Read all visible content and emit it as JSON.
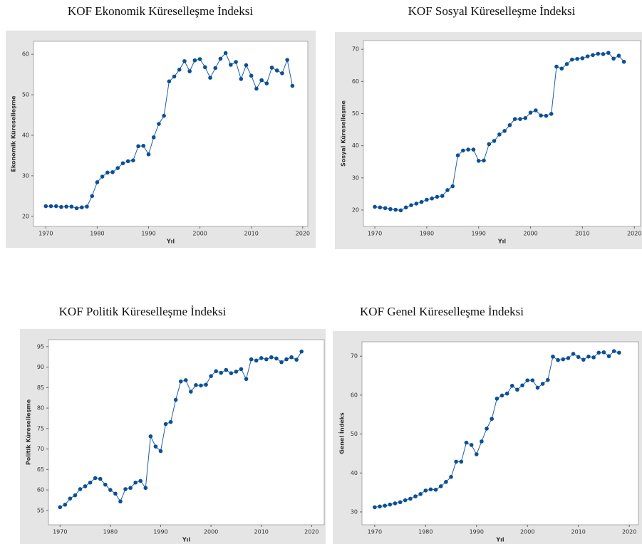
{
  "chart_data": [
    {
      "type": "line",
      "title": "KOF Ekonomik Küreselleşme İndeksi",
      "x_label": "Yıl",
      "y_label": "Ekonomik Küreselleşme",
      "color": "#1f5fa6",
      "x": [
        1970,
        1971,
        1972,
        1973,
        1974,
        1975,
        1976,
        1977,
        1978,
        1979,
        1980,
        1981,
        1982,
        1983,
        1984,
        1985,
        1986,
        1987,
        1988,
        1989,
        1990,
        1991,
        1992,
        1993,
        1994,
        1995,
        1996,
        1997,
        1998,
        1999,
        2000,
        2001,
        2002,
        2003,
        2004,
        2005,
        2006,
        2007,
        2008,
        2009,
        2010,
        2011,
        2012,
        2013,
        2014,
        2015,
        2016,
        2017,
        2018
      ],
      "values": [
        22.5,
        22.5,
        22.5,
        22.3,
        22.4,
        22.4,
        22.0,
        22.2,
        22.4,
        25.0,
        28.4,
        29.8,
        30.8,
        30.9,
        31.9,
        33.1,
        33.6,
        33.8,
        37.3,
        37.4,
        35.3,
        39.5,
        42.8,
        44.8,
        53.3,
        54.5,
        56.2,
        58.3,
        55.8,
        58.5,
        58.8,
        56.8,
        54.2,
        56.6,
        58.9,
        60.3,
        57.4,
        58.1,
        53.9,
        57.3,
        54.7,
        51.5,
        53.6,
        52.8,
        56.7,
        56.0,
        55.3,
        58.6,
        52.2
      ],
      "xlim": [
        1967.6,
        2021
      ],
      "xticks": [
        1970,
        1980,
        1990,
        2000,
        2010,
        2020
      ],
      "ylim": [
        17.5,
        63.2
      ],
      "yticks": [
        20,
        30,
        40,
        50,
        60
      ]
    },
    {
      "type": "line",
      "title": "KOF Sosyal Küreselleşme İndeksi",
      "x_label": "Yıl",
      "y_label": "Sosyal Küreselleşme",
      "color": "#1f5fa6",
      "x": [
        1970,
        1971,
        1972,
        1973,
        1974,
        1975,
        1976,
        1977,
        1978,
        1979,
        1980,
        1981,
        1982,
        1983,
        1984,
        1985,
        1986,
        1987,
        1988,
        1989,
        1990,
        1991,
        1992,
        1993,
        1994,
        1995,
        1996,
        1997,
        1998,
        1999,
        2000,
        2001,
        2002,
        2003,
        2004,
        2005,
        2006,
        2007,
        2008,
        2009,
        2010,
        2011,
        2012,
        2013,
        2014,
        2015,
        2016,
        2017,
        2018
      ],
      "values": [
        21.0,
        20.8,
        20.6,
        20.3,
        20.1,
        19.9,
        20.8,
        21.5,
        22.0,
        22.5,
        23.2,
        23.6,
        24.1,
        24.4,
        26.2,
        27.4,
        37.0,
        38.5,
        38.8,
        38.8,
        35.3,
        35.4,
        40.5,
        41.5,
        43.5,
        44.6,
        46.4,
        48.3,
        48.3,
        48.6,
        50.3,
        51.0,
        49.4,
        49.3,
        49.9,
        64.6,
        64.0,
        65.4,
        66.8,
        67.0,
        67.2,
        67.8,
        68.2,
        68.6,
        68.5,
        68.9,
        67.1,
        68.0,
        66.1
      ],
      "xlim": [
        1967.8,
        2021.2
      ],
      "xticks": [
        1970,
        1980,
        1990,
        2000,
        2010,
        2020
      ],
      "ylim": [
        14.9,
        72.7
      ],
      "yticks": [
        20,
        30,
        40,
        50,
        60,
        70
      ]
    },
    {
      "type": "line",
      "title": "KOF Politik Küreselleşme İndeksi",
      "x_label": "Yıl",
      "y_label": "Politik Küreselleşme",
      "color": "#1f5fa6",
      "x": [
        1970,
        1971,
        1972,
        1973,
        1974,
        1975,
        1976,
        1977,
        1978,
        1979,
        1980,
        1981,
        1982,
        1983,
        1984,
        1985,
        1986,
        1987,
        1988,
        1989,
        1990,
        1991,
        1992,
        1993,
        1994,
        1995,
        1996,
        1997,
        1998,
        1999,
        2000,
        2001,
        2002,
        2003,
        2004,
        2005,
        2006,
        2007,
        2008,
        2009,
        2010,
        2011,
        2012,
        2013,
        2014,
        2015,
        2016,
        2017,
        2018
      ],
      "values": [
        55.8,
        56.4,
        57.9,
        58.7,
        60.2,
        60.9,
        61.8,
        62.9,
        62.7,
        61.3,
        60.0,
        59.1,
        57.2,
        60.2,
        60.5,
        61.8,
        62.2,
        60.5,
        73.1,
        70.6,
        69.5,
        76.1,
        76.6,
        82.0,
        86.5,
        86.8,
        84.0,
        85.6,
        85.5,
        85.7,
        87.8,
        89.0,
        88.6,
        89.3,
        88.5,
        88.9,
        89.5,
        87.1,
        91.9,
        91.6,
        92.2,
        91.9,
        92.4,
        92.1,
        91.2,
        91.9,
        92.4,
        91.8,
        93.8
      ],
      "xlim": [
        1967.7,
        2022.5
      ],
      "xticks": [
        1970,
        1980,
        1990,
        2000,
        2010,
        2020
      ],
      "ylim": [
        51.5,
        96.7
      ],
      "yticks": [
        55,
        60,
        65,
        70,
        75,
        80,
        85,
        90,
        95
      ]
    },
    {
      "type": "line",
      "title": "KOF Genel Küreselleşme İndeksi",
      "x_label": "Yıl",
      "y_label": "Genel İndeks",
      "color": "#1f5fa6",
      "x": [
        1970,
        1971,
        1972,
        1973,
        1974,
        1975,
        1976,
        1977,
        1978,
        1979,
        1980,
        1981,
        1982,
        1983,
        1984,
        1985,
        1986,
        1987,
        1988,
        1989,
        1990,
        1991,
        1992,
        1993,
        1994,
        1995,
        1996,
        1997,
        1998,
        1999,
        2000,
        2001,
        2002,
        2003,
        2004,
        2005,
        2006,
        2007,
        2008,
        2009,
        2010,
        2011,
        2012,
        2013,
        2014,
        2015,
        2016,
        2017,
        2018
      ],
      "values": [
        31.2,
        31.4,
        31.6,
        31.9,
        32.2,
        32.5,
        33.0,
        33.4,
        34.0,
        34.6,
        35.5,
        35.8,
        35.7,
        36.6,
        37.7,
        39.0,
        42.9,
        42.9,
        47.8,
        47.2,
        44.8,
        48.1,
        51.4,
        53.9,
        59.1,
        59.9,
        60.4,
        62.4,
        61.4,
        62.5,
        63.8,
        63.8,
        61.9,
        62.9,
        63.9,
        69.9,
        69.0,
        69.2,
        69.5,
        70.6,
        69.8,
        69.1,
        69.9,
        69.7,
        70.9,
        71.0,
        70.0,
        71.3,
        70.9
      ],
      "xlim": [
        1967.5,
        2021.8
      ],
      "xticks": [
        1970,
        1980,
        1990,
        2000,
        2010,
        2020
      ],
      "ylim": [
        26.7,
        73.7
      ],
      "yticks": [
        30,
        40,
        50,
        60,
        70
      ]
    }
  ]
}
